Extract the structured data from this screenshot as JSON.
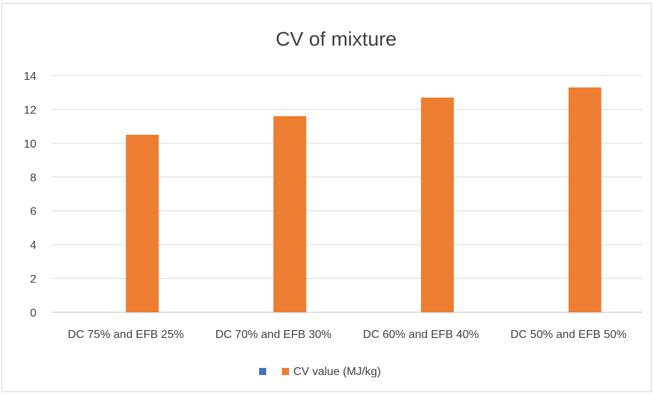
{
  "chart_data": {
    "type": "bar",
    "title": "CV  of mixture",
    "xlabel": "",
    "ylabel": "",
    "categories": [
      "DC 75% and EFB 25%",
      "DC 70% and EFB 30%",
      "DC 60% and EFB 40%",
      "DC 50% and EFB 50%"
    ],
    "series": [
      {
        "name": "",
        "color": "#4472c4",
        "values": [
          null,
          null,
          null,
          null
        ]
      },
      {
        "name": "CV value (MJ/kg)",
        "color": "#ed7d31",
        "values": [
          10.5,
          11.6,
          12.7,
          13.3
        ]
      }
    ],
    "ylim": [
      0,
      14
    ],
    "yticks": [
      "0",
      "2",
      "4",
      "6",
      "8",
      "10",
      "12",
      "14"
    ],
    "grid": true,
    "legend": "bottom"
  }
}
